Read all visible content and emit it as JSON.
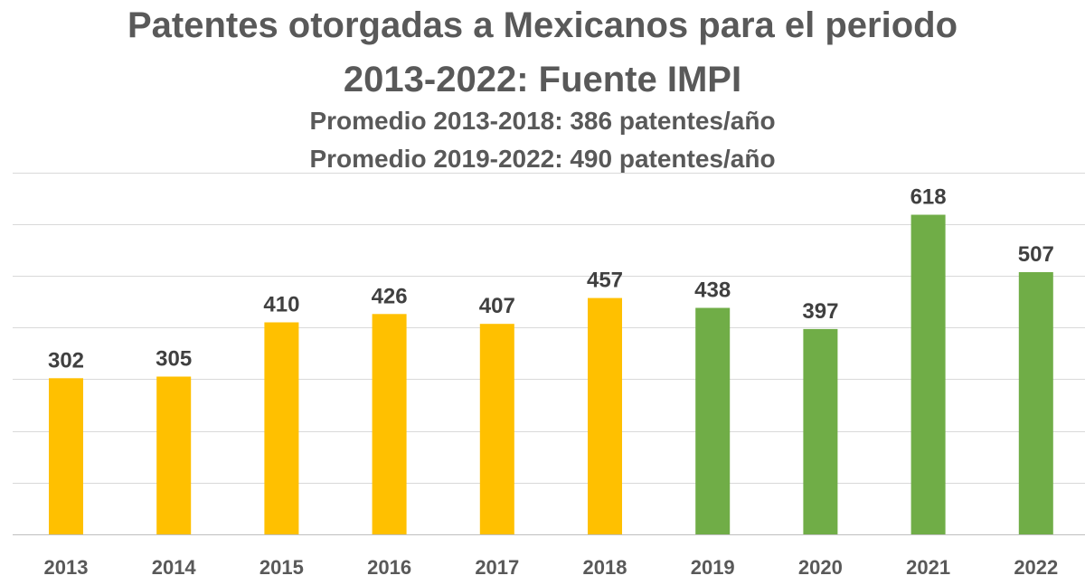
{
  "chart_data": {
    "type": "bar",
    "title": "Patentes otorgadas a Mexicanos para el periodo 2013-2022: Fuente IMPI",
    "title_line1": "Patentes otorgadas a Mexicanos para el periodo",
    "title_line2": "2013-2022: Fuente IMPI",
    "subtitle_line1": "Promedio 2013-2018: 386 patentes/año",
    "subtitle_line2": "Promedio 2019-2022: 490 patentes/año",
    "categories": [
      "2013",
      "2014",
      "2015",
      "2016",
      "2017",
      "2018",
      "2019",
      "2020",
      "2021",
      "2022"
    ],
    "values": [
      302,
      305,
      410,
      426,
      407,
      457,
      438,
      397,
      618,
      507
    ],
    "bar_colors": [
      "#FFC000",
      "#FFC000",
      "#FFC000",
      "#FFC000",
      "#FFC000",
      "#FFC000",
      "#70AD47",
      "#70AD47",
      "#70AD47",
      "#70AD47"
    ],
    "ylim": [
      0,
      700
    ],
    "grid": true,
    "y_tick_labels_visible": false,
    "data_labels": true
  }
}
